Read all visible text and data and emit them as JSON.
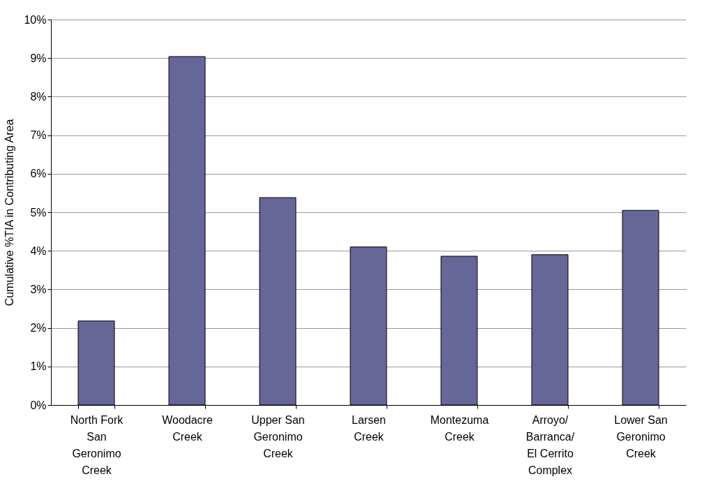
{
  "chart_data": {
    "type": "bar",
    "ylabel": "Cumulative %TIA in Contributing Area",
    "categories": [
      "North Fork San Geronimo Creek",
      "Woodacre Creek",
      "Upper San Geronimo Creek",
      "Larsen Creek",
      "Montezuma Creek",
      "Arroyo/Barranca/El Cerrito Complex",
      "Lower San Geronimo Creek"
    ],
    "values": [
      2.18,
      9.04,
      5.38,
      4.1,
      3.86,
      3.9,
      5.05
    ],
    "color": "#666699",
    "ylim": [
      0,
      10
    ],
    "yticks": [
      {
        "value": 0,
        "label": "0%"
      },
      {
        "value": 1,
        "label": "1%"
      },
      {
        "value": 2,
        "label": "2%"
      },
      {
        "value": 3,
        "label": "3%"
      },
      {
        "value": 4,
        "label": "4%"
      },
      {
        "value": 5,
        "label": "5%"
      },
      {
        "value": 6,
        "label": "6%"
      },
      {
        "value": 7,
        "label": "7%"
      },
      {
        "value": 8,
        "label": "8%"
      },
      {
        "value": 9,
        "label": "9%"
      },
      {
        "value": 10,
        "label": "10%"
      }
    ],
    "grid": "y"
  }
}
